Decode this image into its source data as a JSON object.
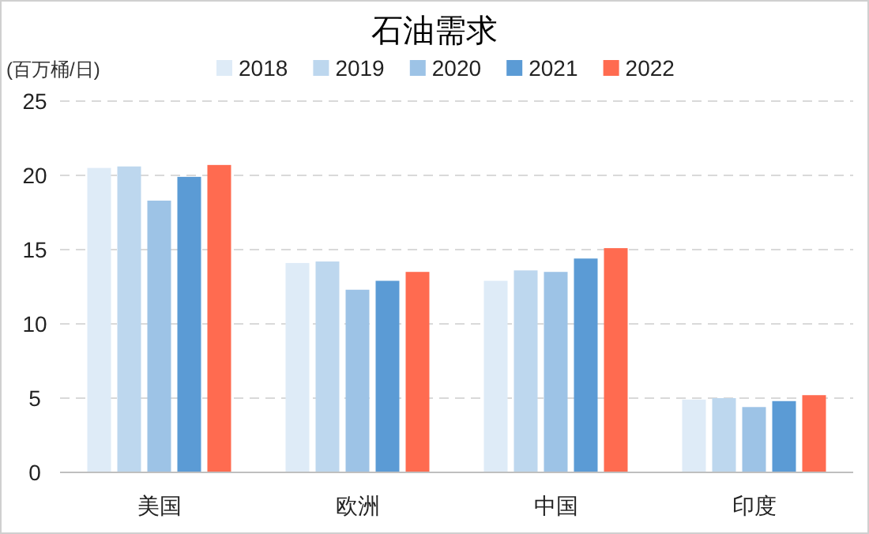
{
  "chart_data": {
    "type": "bar",
    "title": "石油需求",
    "ylabel": "(百万桶/日)",
    "categories": [
      "美国",
      "欧洲",
      "中国",
      "印度"
    ],
    "series": [
      {
        "name": "2018",
        "color": "#deebf7",
        "values": [
          20.5,
          14.1,
          12.9,
          4.9
        ]
      },
      {
        "name": "2019",
        "color": "#bdd7ee",
        "values": [
          20.6,
          14.2,
          13.6,
          5.0
        ]
      },
      {
        "name": "2020",
        "color": "#9dc3e6",
        "values": [
          18.3,
          12.3,
          13.5,
          4.4
        ]
      },
      {
        "name": "2021",
        "color": "#5b9bd5",
        "values": [
          19.9,
          12.9,
          14.4,
          4.8
        ]
      },
      {
        "name": "2022",
        "color": "#ff6b50",
        "values": [
          20.7,
          13.5,
          15.1,
          5.2
        ]
      }
    ],
    "ylim": [
      0,
      25
    ],
    "yticks": [
      0,
      5,
      10,
      15,
      20,
      25
    ],
    "grid": "y",
    "legend": "top"
  }
}
